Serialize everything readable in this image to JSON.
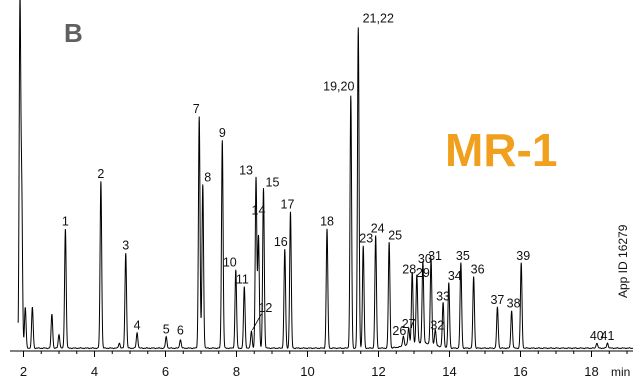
{
  "chart_data": {
    "type": "line",
    "panel_label": "B",
    "method_label": "MR-1",
    "app_id": "App ID 16279",
    "xlabel": "min",
    "xlim": [
      1.85,
      19.25
    ],
    "ylim": [
      0,
      100
    ],
    "x_ticks": [
      2,
      4,
      6,
      8,
      10,
      12,
      14,
      16,
      18
    ],
    "x_tick_labels": [
      "2",
      "4",
      "6",
      "8",
      "10",
      "12",
      "14",
      "16",
      "18"
    ],
    "unlabeled_peaks": [
      {
        "x": 1.9,
        "y": 100
      },
      {
        "x": 1.95,
        "y": 44
      },
      {
        "x": 2.05,
        "y": 12
      },
      {
        "x": 2.25,
        "y": 12
      },
      {
        "x": 2.8,
        "y": 10
      },
      {
        "x": 3.0,
        "y": 4
      },
      {
        "x": 4.7,
        "y": 1.5
      }
    ],
    "peaks": [
      {
        "label": "1",
        "x": 3.18,
        "y": 35
      },
      {
        "label": "2",
        "x": 4.18,
        "y": 49
      },
      {
        "label": "3",
        "x": 4.88,
        "y": 28
      },
      {
        "label": "4",
        "x": 5.2,
        "y": 4.5
      },
      {
        "label": "5",
        "x": 6.02,
        "y": 3.3
      },
      {
        "label": "6",
        "x": 6.42,
        "y": 2.5
      },
      {
        "label": "7",
        "x": 6.95,
        "y": 68
      },
      {
        "label": "8",
        "x": 7.05,
        "y": 48
      },
      {
        "label": "9",
        "x": 7.6,
        "y": 61
      },
      {
        "label": "10",
        "x": 7.98,
        "y": 23
      },
      {
        "label": "11",
        "x": 8.22,
        "y": 18
      },
      {
        "label": "12",
        "x": 8.42,
        "y": 5
      },
      {
        "label": "13",
        "x": 8.55,
        "y": 50
      },
      {
        "label": "14",
        "x": 8.62,
        "y": 33
      },
      {
        "label": "15",
        "x": 8.76,
        "y": 47
      },
      {
        "label": "16",
        "x": 9.36,
        "y": 29
      },
      {
        "label": "17",
        "x": 9.52,
        "y": 40
      },
      {
        "label": "18",
        "x": 10.55,
        "y": 35
      },
      {
        "label": "19,20",
        "x": 11.22,
        "y": 74
      },
      {
        "label": "21,22",
        "x": 11.43,
        "y": 94
      },
      {
        "label": "23",
        "x": 11.57,
        "y": 30
      },
      {
        "label": "24",
        "x": 11.92,
        "y": 33
      },
      {
        "label": "25",
        "x": 12.3,
        "y": 31
      },
      {
        "label": "26",
        "x": 12.7,
        "y": 3
      },
      {
        "label": "27",
        "x": 12.85,
        "y": 5
      },
      {
        "label": "28",
        "x": 12.95,
        "y": 21
      },
      {
        "label": "29",
        "x": 13.08,
        "y": 20
      },
      {
        "label": "30",
        "x": 13.25,
        "y": 24
      },
      {
        "label": "31",
        "x": 13.48,
        "y": 25
      },
      {
        "label": "32",
        "x": 13.6,
        "y": 4.5
      },
      {
        "label": "33",
        "x": 13.82,
        "y": 13
      },
      {
        "label": "34",
        "x": 13.98,
        "y": 19
      },
      {
        "label": "35",
        "x": 14.32,
        "y": 25
      },
      {
        "label": "36",
        "x": 14.68,
        "y": 21
      },
      {
        "label": "37",
        "x": 15.35,
        "y": 12
      },
      {
        "label": "38",
        "x": 15.75,
        "y": 11
      },
      {
        "label": "39",
        "x": 16.02,
        "y": 25
      },
      {
        "label": "40",
        "x": 18.15,
        "y": 1.5
      },
      {
        "label": "41",
        "x": 18.45,
        "y": 1.5
      }
    ]
  }
}
